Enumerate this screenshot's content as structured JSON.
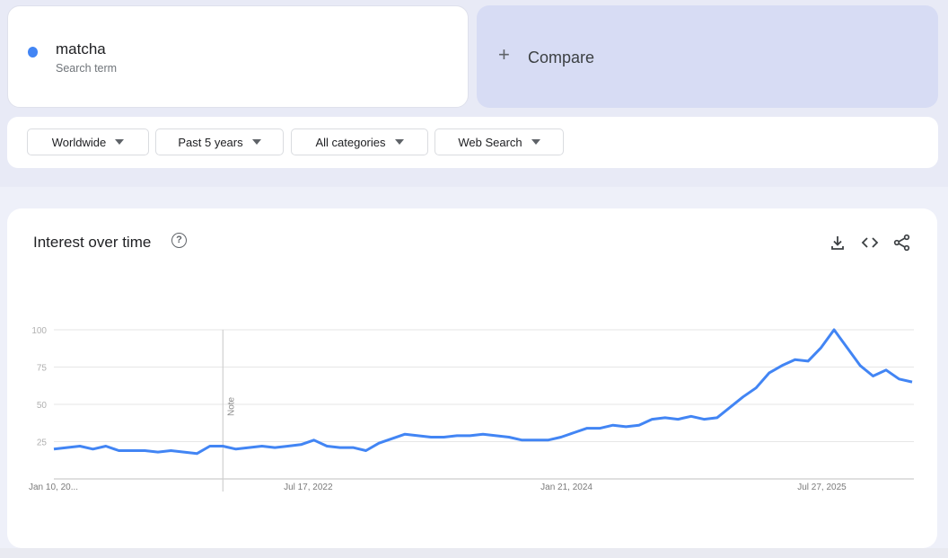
{
  "search_term": {
    "term": "matcha",
    "subtitle": "Search term",
    "color": "#4285f4"
  },
  "compare": {
    "label": "Compare",
    "icon": "plus-icon"
  },
  "filters": [
    {
      "label": "Worldwide"
    },
    {
      "label": "Past 5 years"
    },
    {
      "label": "All categories"
    },
    {
      "label": "Web Search"
    }
  ],
  "chart_card": {
    "title": "Interest over time",
    "actions": [
      "download-icon",
      "embed-code-icon",
      "share-icon"
    ]
  },
  "chart_data": {
    "type": "line",
    "title": "Interest over time",
    "ylim": [
      0,
      100
    ],
    "y_ticks": [
      25,
      50,
      75,
      100
    ],
    "x_tick_labels": [
      {
        "label": "Jan 10, 20...",
        "date": "2021-01-10"
      },
      {
        "label": "Jul 17, 2022",
        "date": "2022-07-17"
      },
      {
        "label": "Jan 21, 2024",
        "date": "2024-01-21"
      },
      {
        "label": "Jul 27, 2025",
        "date": "2025-07-27"
      }
    ],
    "annotation": {
      "label": "Note",
      "date": "2022-01-09"
    },
    "grid": true,
    "line_color": "#4285f4",
    "series": [
      {
        "name": "matcha",
        "x": [
          "2021-01-10",
          "2021-02-07",
          "2021-03-07",
          "2021-04-04",
          "2021-05-02",
          "2021-05-30",
          "2021-06-27",
          "2021-07-25",
          "2021-08-22",
          "2021-09-19",
          "2021-10-17",
          "2021-11-14",
          "2021-12-12",
          "2022-01-09",
          "2022-02-06",
          "2022-03-06",
          "2022-04-03",
          "2022-05-01",
          "2022-05-29",
          "2022-06-26",
          "2022-07-24",
          "2022-08-21",
          "2022-09-18",
          "2022-10-16",
          "2022-11-13",
          "2022-12-11",
          "2023-01-08",
          "2023-02-05",
          "2023-03-05",
          "2023-04-02",
          "2023-04-30",
          "2023-05-28",
          "2023-06-25",
          "2023-07-23",
          "2023-08-20",
          "2023-09-17",
          "2023-10-15",
          "2023-11-12",
          "2023-12-10",
          "2024-01-07",
          "2024-02-04",
          "2024-03-03",
          "2024-03-31",
          "2024-04-28",
          "2024-05-26",
          "2024-06-23",
          "2024-07-21",
          "2024-08-18",
          "2024-09-15",
          "2024-10-13",
          "2024-11-10",
          "2024-12-08",
          "2025-01-05",
          "2025-02-02",
          "2025-03-02",
          "2025-03-30",
          "2025-04-27",
          "2025-05-25",
          "2025-06-22",
          "2025-07-20",
          "2025-08-17",
          "2025-09-14",
          "2025-10-12",
          "2025-11-09",
          "2025-12-07",
          "2026-01-04",
          "2026-02-01"
        ],
        "values": [
          20,
          21,
          22,
          20,
          22,
          19,
          19,
          19,
          18,
          19,
          18,
          17,
          22,
          22,
          20,
          21,
          22,
          21,
          22,
          23,
          26,
          22,
          21,
          21,
          19,
          24,
          27,
          30,
          29,
          28,
          28,
          29,
          29,
          30,
          29,
          28,
          26,
          26,
          26,
          28,
          31,
          34,
          34,
          36,
          35,
          36,
          40,
          41,
          40,
          42,
          40,
          41,
          48,
          55,
          61,
          71,
          76,
          80,
          79,
          88,
          100,
          88,
          76,
          69,
          73,
          67,
          65
        ]
      }
    ]
  }
}
